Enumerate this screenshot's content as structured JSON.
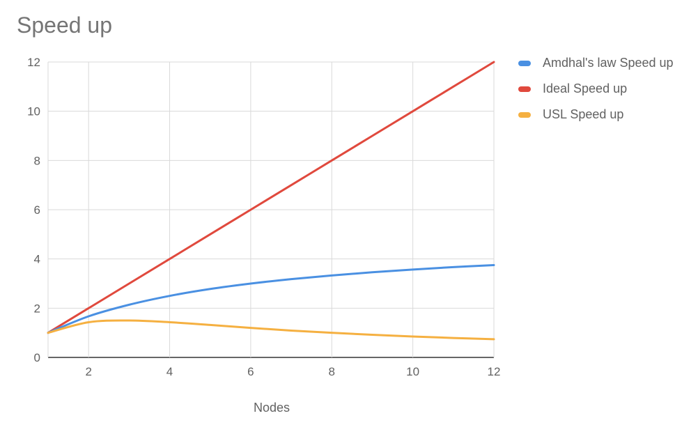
{
  "chart_data": {
    "type": "line",
    "title": "Speed up",
    "xlabel": "Nodes",
    "ylabel": "",
    "xlim": [
      1,
      12
    ],
    "ylim": [
      0,
      12
    ],
    "x_ticks": [
      2,
      4,
      6,
      8,
      10,
      12
    ],
    "y_ticks": [
      0,
      2,
      4,
      6,
      8,
      10,
      12
    ],
    "grid": true,
    "legend_position": "right",
    "x": [
      1,
      2,
      3,
      4,
      5,
      6,
      7,
      8,
      9,
      10,
      11,
      12
    ],
    "series": [
      {
        "name": "Amdhal's law Speed up",
        "color": "#4a90e2",
        "values": [
          1,
          1.67,
          2.14,
          2.5,
          2.78,
          3.0,
          3.18,
          3.33,
          3.46,
          3.57,
          3.67,
          3.75
        ]
      },
      {
        "name": "Ideal Speed up",
        "color": "#e0493d",
        "values": [
          1,
          2,
          3,
          4,
          5,
          6,
          7,
          8,
          9,
          10,
          11,
          12
        ]
      },
      {
        "name": "USL Speed up",
        "color": "#f5b041",
        "values": [
          1,
          1.43,
          1.5,
          1.43,
          1.32,
          1.2,
          1.09,
          1.0,
          0.92,
          0.85,
          0.79,
          0.74
        ]
      }
    ]
  }
}
